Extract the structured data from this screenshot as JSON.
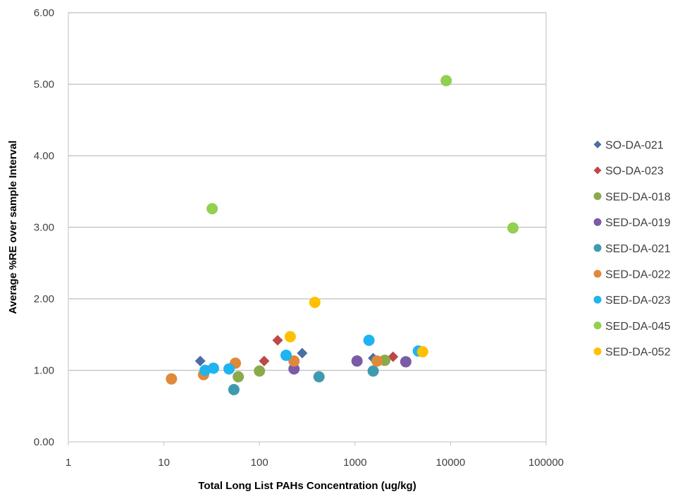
{
  "chart_data": {
    "type": "scatter",
    "title": "",
    "xlabel": "Total Long List PAHs Concentration (ug/kg)",
    "ylabel": "Average %RE over sample Interval",
    "xscale": "log",
    "xlim": [
      1,
      100000
    ],
    "ylim": [
      0,
      6
    ],
    "x_ticks": [
      1,
      10,
      100,
      1000,
      10000,
      100000
    ],
    "x_tick_labels": [
      "1",
      "10",
      "100",
      "1000",
      "10000",
      "100000"
    ],
    "y_ticks": [
      0,
      1,
      2,
      3,
      4,
      5,
      6
    ],
    "y_tick_labels": [
      "0.00",
      "1.00",
      "2.00",
      "3.00",
      "4.00",
      "5.00",
      "6.00"
    ],
    "grid": "horizontal",
    "legend_position": "right",
    "series": [
      {
        "name": "SO-DA-021",
        "marker": "diamond",
        "color": "#4A6FA5",
        "points": [
          [
            24,
            1.13
          ],
          [
            280,
            1.24
          ],
          [
            1550,
            1.17
          ]
        ]
      },
      {
        "name": "SO-DA-023",
        "marker": "diamond",
        "color": "#B94A48",
        "points": [
          [
            155,
            1.42
          ],
          [
            112,
            1.13
          ],
          [
            2500,
            1.19
          ]
        ]
      },
      {
        "name": "SED-DA-018",
        "marker": "circle",
        "color": "#8AAA4B",
        "points": [
          [
            60,
            0.91
          ],
          [
            100,
            0.99
          ],
          [
            2050,
            1.14
          ]
        ]
      },
      {
        "name": "SED-DA-019",
        "marker": "circle",
        "color": "#7B5BA6",
        "points": [
          [
            230,
            1.02
          ],
          [
            1050,
            1.13
          ],
          [
            3400,
            1.12
          ]
        ]
      },
      {
        "name": "SED-DA-021",
        "marker": "circle",
        "color": "#3E9BAF",
        "points": [
          [
            54,
            0.73
          ],
          [
            420,
            0.91
          ],
          [
            1550,
            0.99
          ]
        ]
      },
      {
        "name": "SED-DA-022",
        "marker": "circle",
        "color": "#E0893A",
        "points": [
          [
            12,
            0.88
          ],
          [
            26,
            0.94
          ],
          [
            56,
            1.1
          ],
          [
            230,
            1.13
          ],
          [
            1700,
            1.13
          ]
        ]
      },
      {
        "name": "SED-DA-023",
        "marker": "circle",
        "color": "#1FB4F0",
        "points": [
          [
            27,
            1.0
          ],
          [
            33,
            1.03
          ],
          [
            48,
            1.02
          ],
          [
            190,
            1.21
          ],
          [
            1400,
            1.42
          ],
          [
            4600,
            1.27
          ]
        ]
      },
      {
        "name": "SED-DA-045",
        "marker": "circle",
        "color": "#92D050",
        "points": [
          [
            32,
            3.26
          ],
          [
            9000,
            5.05
          ],
          [
            45000,
            2.99
          ]
        ]
      },
      {
        "name": "SED-DA-052",
        "marker": "circle",
        "color": "#FFC000",
        "points": [
          [
            210,
            1.47
          ],
          [
            380,
            1.95
          ],
          [
            5100,
            1.26
          ]
        ]
      }
    ]
  }
}
